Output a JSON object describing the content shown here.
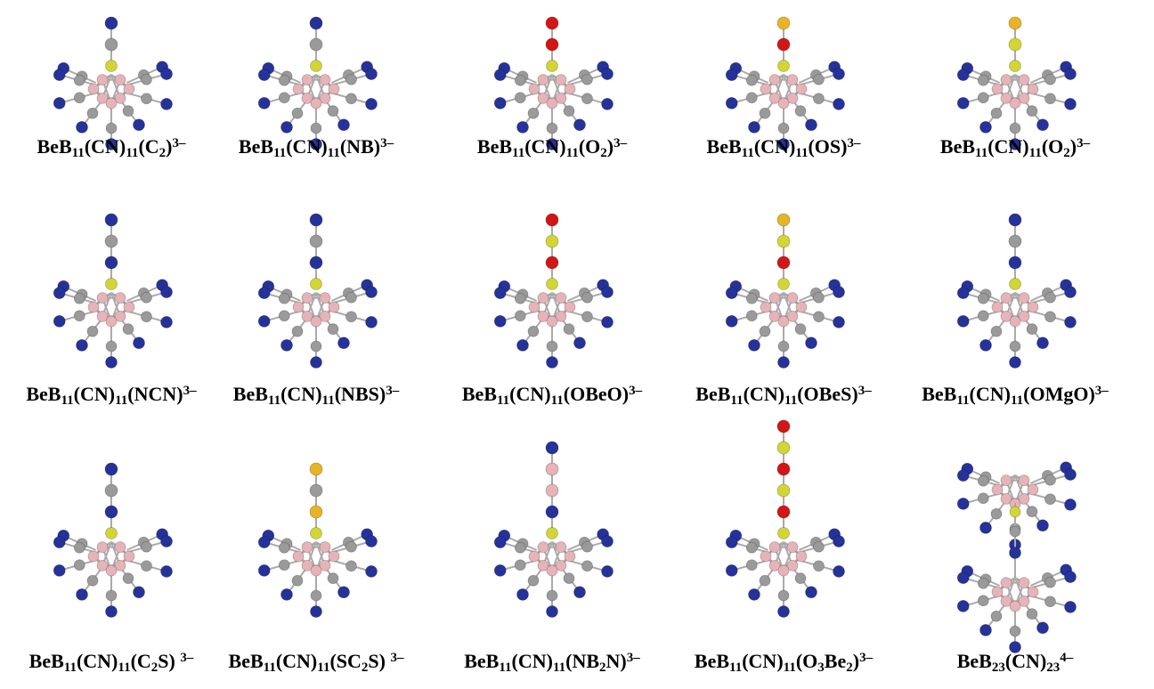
{
  "labels": [
    [
      {
        "text": "BeB"
      },
      {
        "sub": "11"
      },
      {
        "text": "(CN)"
      },
      {
        "sub": "11"
      },
      {
        "text": "(C"
      },
      {
        "sub": "2"
      },
      {
        "text": ")"
      },
      {
        "sup": "3–"
      }
    ],
    [
      {
        "text": "BeB"
      },
      {
        "sub": "11"
      },
      {
        "text": "(CN)"
      },
      {
        "sub": "11"
      },
      {
        "text": "(NB)"
      },
      {
        "sup": "3–"
      }
    ],
    [
      {
        "text": "BeB"
      },
      {
        "sub": "11"
      },
      {
        "text": "(CN)"
      },
      {
        "sub": "11"
      },
      {
        "text": "(O"
      },
      {
        "sub": "2"
      },
      {
        "text": ")"
      },
      {
        "sup": "3–"
      }
    ],
    [
      {
        "text": "BeB"
      },
      {
        "sub": "11"
      },
      {
        "text": "(CN)"
      },
      {
        "sub": "11"
      },
      {
        "text": "(OS)"
      },
      {
        "sup": "3–"
      }
    ],
    [
      {
        "text": "BeB"
      },
      {
        "sub": "11"
      },
      {
        "text": "(CN)"
      },
      {
        "sub": "11"
      },
      {
        "text": "(O"
      },
      {
        "sub": "2"
      },
      {
        "text": ")"
      },
      {
        "sup": "3–"
      }
    ],
    [
      {
        "text": "BeB"
      },
      {
        "sub": "11"
      },
      {
        "text": "(CN)"
      },
      {
        "sub": "11"
      },
      {
        "text": "(NCN)"
      },
      {
        "sup": "3–"
      }
    ],
    [
      {
        "text": "BeB"
      },
      {
        "sub": "11"
      },
      {
        "text": "(CN)"
      },
      {
        "sub": "11"
      },
      {
        "text": "(NBS)"
      },
      {
        "sup": "3–"
      }
    ],
    [
      {
        "text": "BeB"
      },
      {
        "sub": "11"
      },
      {
        "text": "(CN)"
      },
      {
        "sub": "11"
      },
      {
        "text": "(OBeO)"
      },
      {
        "sup": "3–"
      }
    ],
    [
      {
        "text": "BeB"
      },
      {
        "sub": "11"
      },
      {
        "text": "(CN)"
      },
      {
        "sub": "11"
      },
      {
        "text": "(OBeS)"
      },
      {
        "sup": "3–"
      }
    ],
    [
      {
        "text": "BeB"
      },
      {
        "sub": "11"
      },
      {
        "text": "(CN)"
      },
      {
        "sub": "11"
      },
      {
        "text": "(OMgO)"
      },
      {
        "sup": "3–"
      }
    ],
    [
      {
        "text": "BeB"
      },
      {
        "sub": "11"
      },
      {
        "text": "(CN)"
      },
      {
        "sub": "11"
      },
      {
        "text": "(C"
      },
      {
        "sub": "2"
      },
      {
        "text": "S) "
      },
      {
        "sup": "3–"
      }
    ],
    [
      {
        "text": "BeB"
      },
      {
        "sub": "11"
      },
      {
        "text": "(CN)"
      },
      {
        "sub": "11"
      },
      {
        "text": "(SC"
      },
      {
        "sub": "2"
      },
      {
        "text": "S) "
      },
      {
        "sup": "3–"
      }
    ],
    [
      {
        "text": "BeB"
      },
      {
        "sub": "11"
      },
      {
        "text": "(CN)"
      },
      {
        "sub": "11"
      },
      {
        "text": "(NB"
      },
      {
        "sub": "2"
      },
      {
        "text": "N)"
      },
      {
        "sup": "3–"
      }
    ],
    [
      {
        "text": "BeB"
      },
      {
        "sub": "11"
      },
      {
        "text": "(CN)"
      },
      {
        "sub": "11"
      },
      {
        "text": "(O"
      },
      {
        "sub": "3"
      },
      {
        "text": "Be"
      },
      {
        "sub": "2"
      },
      {
        "text": ")"
      },
      {
        "sup": "3–"
      }
    ],
    [
      {
        "text": "BeB"
      },
      {
        "sub": "23"
      },
      {
        "text": "(CN)"
      },
      {
        "sub": "23"
      },
      {
        "sup": "4–"
      }
    ]
  ]
}
